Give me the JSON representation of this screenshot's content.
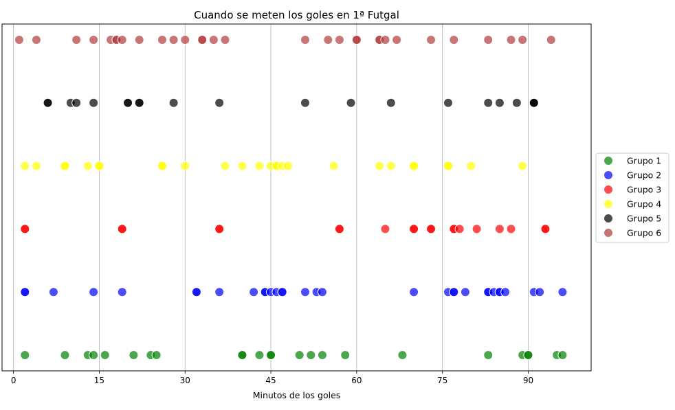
{
  "chart_data": {
    "type": "scatter",
    "title": "Cuando se meten los goles en 1ª Futgal",
    "xlabel": "Minutos de los goles",
    "ylabel": "",
    "xlim": [
      -2,
      101
    ],
    "xticks": [
      0,
      15,
      30,
      45,
      60,
      75,
      90
    ],
    "grid": "vertical",
    "legend_position": "right",
    "series": [
      {
        "name": "Grupo 1",
        "color": "#008000",
        "row": 0,
        "x": [
          2,
          9,
          13,
          14,
          16,
          21,
          24,
          25,
          40,
          40,
          43,
          45,
          45,
          50,
          52,
          54,
          58,
          68,
          83,
          89,
          90,
          90,
          95,
          96
        ]
      },
      {
        "name": "Grupo 2",
        "color": "#0000ff",
        "row": 1,
        "x": [
          2,
          2,
          7,
          14,
          19,
          32,
          32,
          36,
          42,
          44,
          44,
          45,
          46,
          47,
          47,
          51,
          53,
          54,
          70,
          76,
          77,
          77,
          79,
          83,
          83,
          84,
          85,
          85,
          86,
          91,
          92,
          96
        ]
      },
      {
        "name": "Grupo 3",
        "color": "#ff0000",
        "row": 2,
        "x": [
          2,
          2,
          19,
          19,
          36,
          36,
          57,
          57,
          65,
          70,
          70,
          73,
          73,
          77,
          77,
          78,
          81,
          85,
          87,
          93,
          93
        ]
      },
      {
        "name": "Grupo 4",
        "color": "#ffff00",
        "row": 3,
        "x": [
          2,
          4,
          9,
          9,
          13,
          15,
          15,
          26,
          26,
          30,
          37,
          40,
          43,
          45,
          46,
          46,
          47,
          48,
          56,
          64,
          66,
          70,
          70,
          76,
          76,
          80,
          89
        ]
      },
      {
        "name": "Grupo 5",
        "color": "#000000",
        "row": 4,
        "x": [
          6,
          6,
          10,
          11,
          14,
          20,
          20,
          22,
          22,
          28,
          36,
          51,
          59,
          66,
          76,
          83,
          85,
          88,
          91,
          91,
          91
        ]
      },
      {
        "name": "Grupo 6",
        "color": "#b03a3a",
        "row": 5,
        "x": [
          1,
          4,
          11,
          14,
          17,
          18,
          18,
          19,
          22,
          26,
          28,
          30,
          33,
          33,
          35,
          37,
          51,
          55,
          57,
          60,
          60,
          64,
          64,
          65,
          67,
          73,
          77,
          83,
          87,
          89,
          94
        ]
      }
    ]
  }
}
